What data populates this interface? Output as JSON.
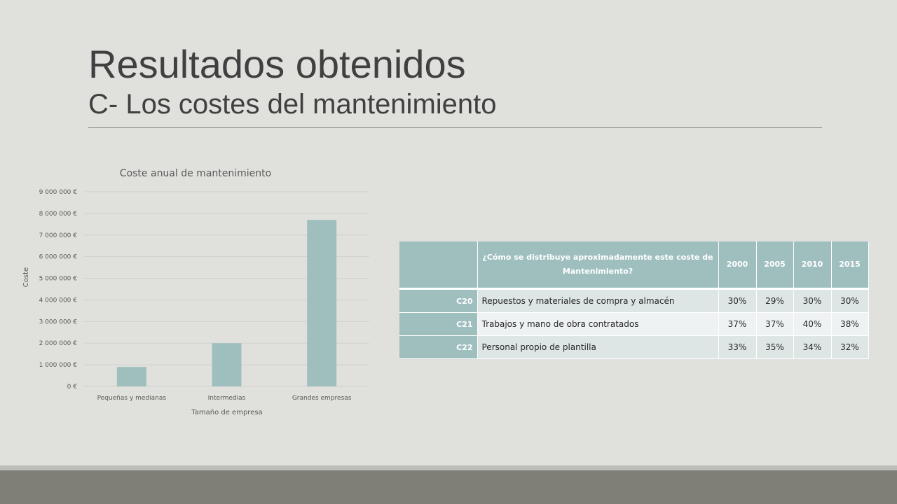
{
  "slide": {
    "title": "Resultados obtenidos",
    "subtitle": "C- Los costes del mantenimiento"
  },
  "colors": {
    "background": "#e0e1dc",
    "bar": "#9fbfbf",
    "table_header": "#9fbfbf",
    "footer": "#7f7f78"
  },
  "chart_data": {
    "type": "bar",
    "title": "Coste anual de mantenimiento",
    "xlabel": "Tamaño de empresa",
    "ylabel": "Coste",
    "categories": [
      "Pequeñas y medianas",
      "Intermedias",
      "Grandes empresas"
    ],
    "values": [
      900000,
      2000000,
      7700000
    ],
    "ylim": [
      0,
      9000000
    ],
    "yticks": [
      0,
      1000000,
      2000000,
      3000000,
      4000000,
      5000000,
      6000000,
      7000000,
      8000000,
      9000000
    ],
    "ytick_labels": [
      "0 €",
      "1 000 000 €",
      "2 000 000 €",
      "3 000 000 €",
      "4 000 000 €",
      "5 000 000 €",
      "6 000 000 €",
      "7 000 000 €",
      "8 000 000 €",
      "9 000 000 €"
    ],
    "grid": true
  },
  "table": {
    "question": "¿Cómo se distribuye aproximadamente este coste de Mantenimiento?",
    "years": [
      "2000",
      "2005",
      "2010",
      "2015"
    ],
    "rows": [
      {
        "code": "C20",
        "label": "Repuestos y materiales de compra y almacén",
        "values": [
          "30%",
          "29%",
          "30%",
          "30%"
        ]
      },
      {
        "code": "C21",
        "label": "Trabajos y mano de obra contratados",
        "values": [
          "37%",
          "37%",
          "40%",
          "38%"
        ]
      },
      {
        "code": "C22",
        "label": "Personal propio de plantilla",
        "values": [
          "33%",
          "35%",
          "34%",
          "32%"
        ]
      }
    ]
  }
}
